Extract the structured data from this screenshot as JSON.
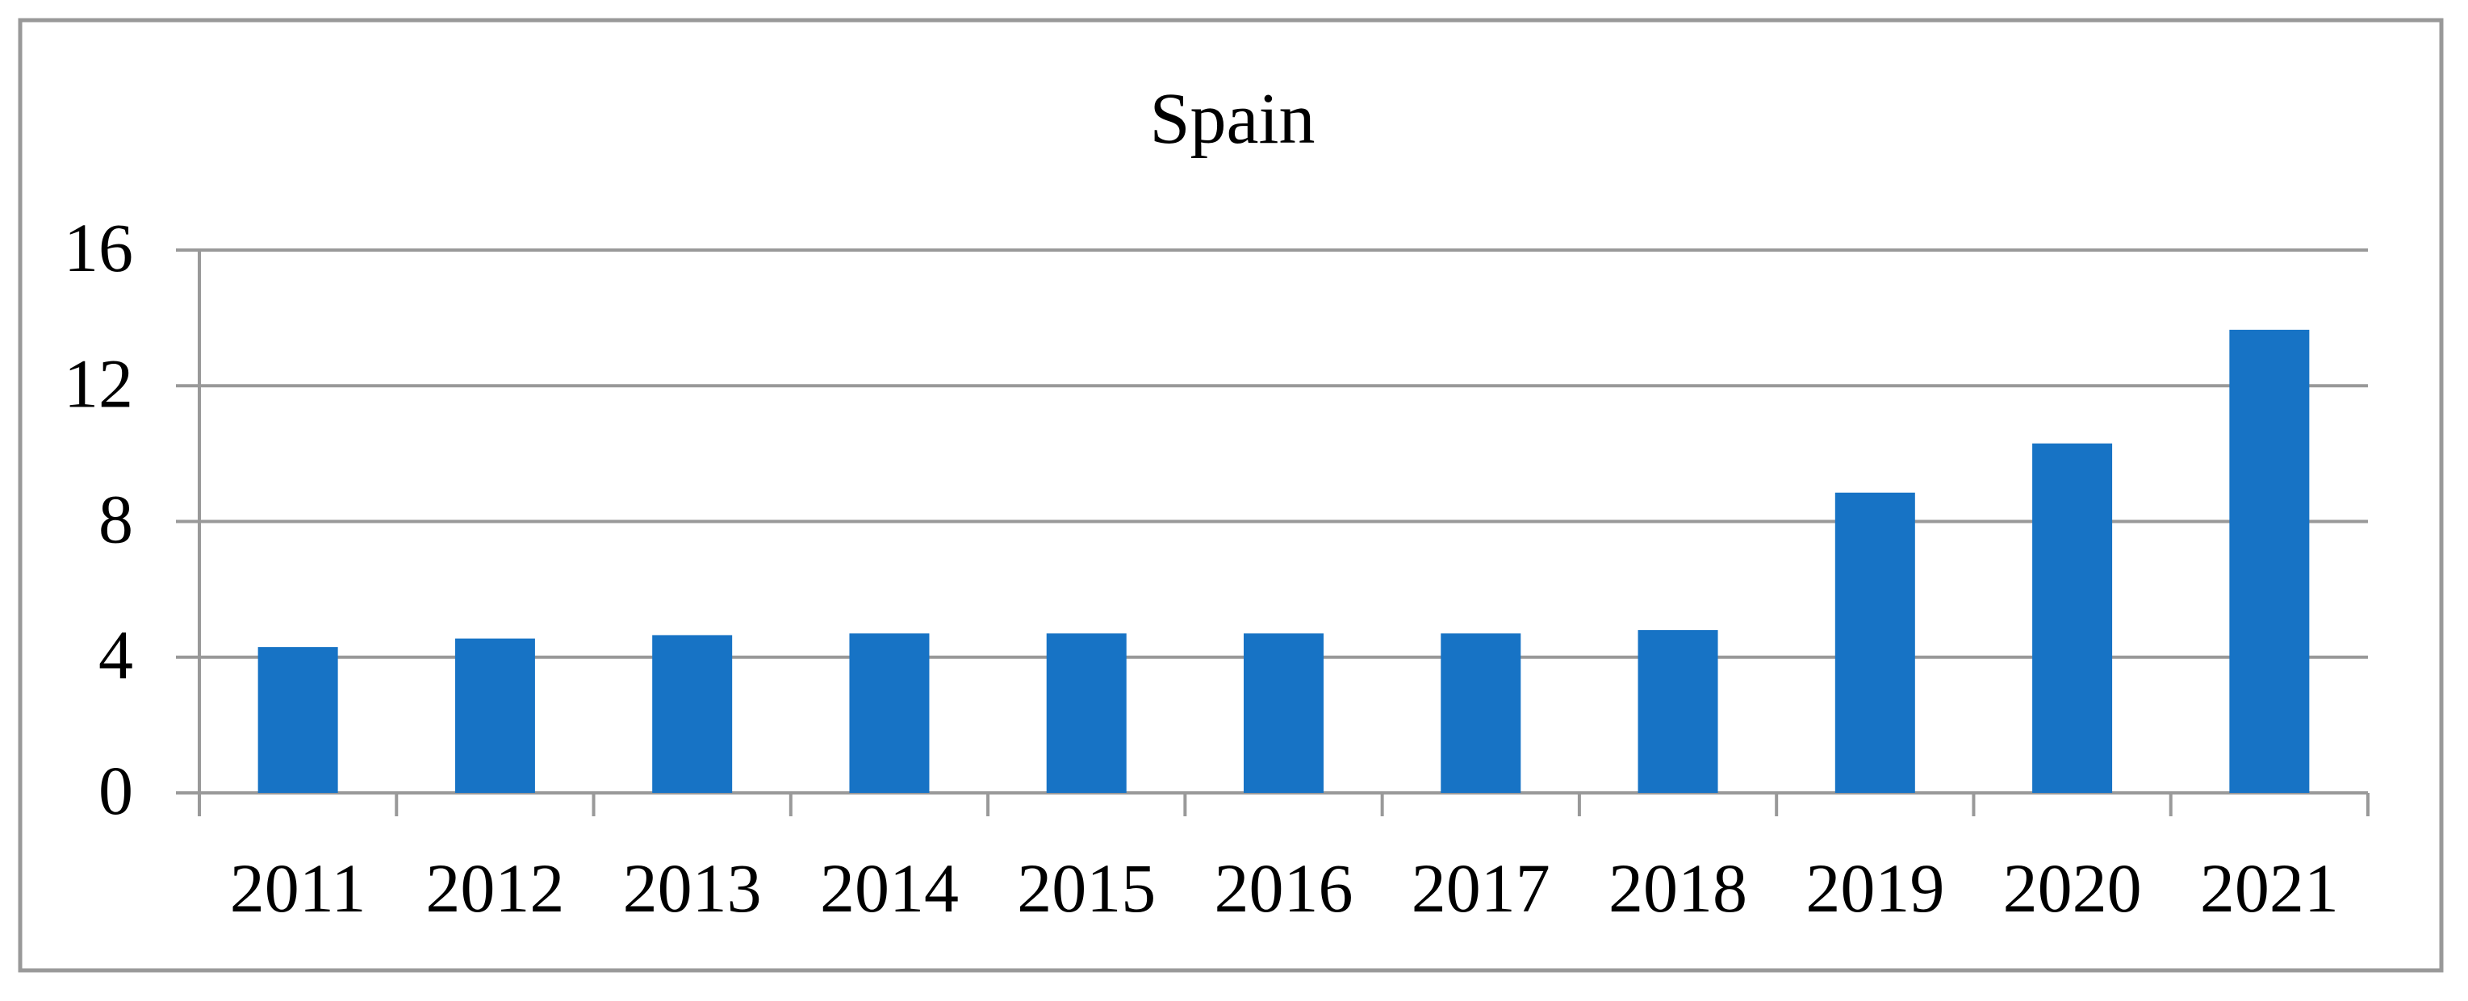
{
  "chart_data": {
    "type": "bar",
    "title": "Spain",
    "categories": [
      "2011",
      "2012",
      "2013",
      "2014",
      "2015",
      "2016",
      "2017",
      "2018",
      "2019",
      "2020",
      "2021"
    ],
    "values": [
      4.3,
      4.55,
      4.65,
      4.7,
      4.7,
      4.7,
      4.7,
      4.8,
      8.85,
      10.3,
      13.65
    ],
    "xlabel": "",
    "ylabel": "",
    "ylim": [
      0,
      16
    ],
    "yticks": [
      0,
      4,
      8,
      12,
      16
    ],
    "grid": true,
    "legend": "none",
    "colors": {
      "bar": "#1773C5",
      "gridline": "#999999",
      "axis": "#999999",
      "border": "#999999",
      "text": "#000000",
      "background": "#FFFFFF"
    }
  }
}
